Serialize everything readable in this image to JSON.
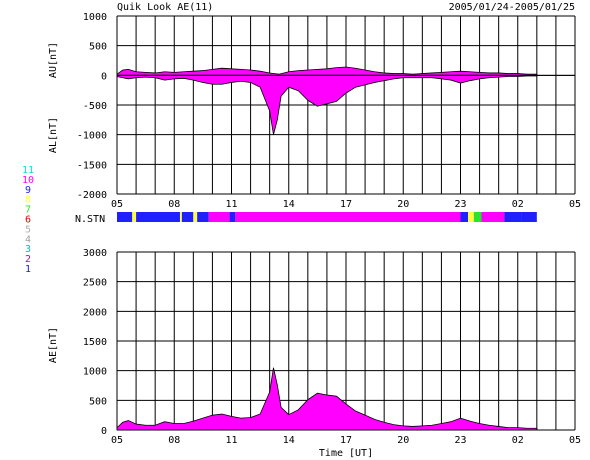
{
  "header": {
    "title": "Quik Look AE(11)",
    "date_range": "2005/01/24-2005/01/25"
  },
  "colors": {
    "grid": "#000000",
    "station_sequence_note": "colors map to station counts 1-11",
    "legend": [
      "#4040ff",
      "#8000ff",
      "#00b0ff",
      "#c0c0c0",
      "#ff0000",
      "#00ff00",
      "#ffff00",
      "#0000ff",
      "#ff00ff",
      "#00ffff",
      "#ff00ff"
    ]
  },
  "legend": {
    "items": [
      {
        "label": "11",
        "color": "#00e0e0"
      },
      {
        "label": "10",
        "color": "#ff00ff"
      },
      {
        "label": "9",
        "color": "#2020ff"
      },
      {
        "label": "8",
        "color": "#ffff40"
      },
      {
        "label": "7",
        "color": "#30e030"
      },
      {
        "label": "6",
        "color": "#e00000"
      },
      {
        "label": "5",
        "color": "#b0b0b0"
      },
      {
        "label": "4",
        "color": "#a0a0a0"
      },
      {
        "label": "3",
        "color": "#20b0b0"
      },
      {
        "label": "2",
        "color": "#a020a0"
      },
      {
        "label": "1",
        "color": "#2020c0"
      }
    ]
  },
  "nstn_label": "N.STN",
  "chart_data": [
    {
      "type": "area",
      "name": "AU/AL",
      "ylabel_top": "AU[nT]",
      "ylabel_bottom": "AL[nT]",
      "ylim": [
        -2000,
        1000
      ],
      "yticks": [
        1000,
        500,
        0,
        -500,
        -1000,
        -1500,
        -2000
      ],
      "xlim": [
        5,
        29
      ],
      "xticks": [
        "05",
        "08",
        "11",
        "14",
        "17",
        "20",
        "23",
        "02",
        "05"
      ],
      "au": {
        "x": [
          5.0,
          5.3,
          5.6,
          6.0,
          6.5,
          7.0,
          7.5,
          8.0,
          8.5,
          9.0,
          9.5,
          10.0,
          10.5,
          11.0,
          11.5,
          12.0,
          12.5,
          13.0,
          13.5,
          14.0,
          14.5,
          15.0,
          15.5,
          16.0,
          16.5,
          17.0,
          17.5,
          18.0,
          18.5,
          19.0,
          19.5,
          20.0,
          20.5,
          21.0,
          21.5,
          22.0,
          22.5,
          23.0,
          23.5,
          24.0,
          24.5,
          25.0,
          25.5,
          26.0,
          26.5,
          27.0
        ],
        "y": [
          20,
          90,
          100,
          60,
          50,
          40,
          60,
          50,
          60,
          70,
          80,
          100,
          120,
          110,
          100,
          90,
          70,
          40,
          20,
          60,
          80,
          90,
          100,
          110,
          130,
          140,
          120,
          90,
          60,
          40,
          30,
          30,
          20,
          30,
          40,
          50,
          60,
          70,
          60,
          50,
          40,
          40,
          30,
          30,
          20,
          20
        ]
      },
      "al": {
        "x": [
          5.0,
          5.3,
          5.6,
          6.0,
          6.5,
          7.0,
          7.5,
          8.0,
          8.5,
          9.0,
          9.5,
          10.0,
          10.5,
          11.0,
          11.5,
          12.0,
          12.5,
          13.0,
          13.2,
          13.4,
          13.6,
          14.0,
          14.5,
          15.0,
          15.5,
          16.0,
          16.5,
          17.0,
          17.5,
          18.0,
          18.5,
          19.0,
          19.5,
          20.0,
          20.5,
          21.0,
          21.5,
          22.0,
          22.5,
          23.0,
          23.5,
          24.0,
          24.5,
          25.0,
          25.5,
          26.0,
          26.5,
          27.0
        ],
        "y": [
          -20,
          -40,
          -60,
          -40,
          -30,
          -40,
          -80,
          -60,
          -50,
          -80,
          -120,
          -150,
          -150,
          -120,
          -100,
          -120,
          -200,
          -600,
          -1000,
          -750,
          -350,
          -200,
          -260,
          -420,
          -520,
          -480,
          -440,
          -300,
          -200,
          -160,
          -120,
          -90,
          -60,
          -40,
          -40,
          -40,
          -40,
          -60,
          -80,
          -130,
          -90,
          -60,
          -40,
          -30,
          -20,
          -20,
          -10,
          -10
        ]
      }
    },
    {
      "type": "area",
      "name": "AE",
      "ylabel": "AE[nT]",
      "xlabel": "Time [UT]",
      "ylim": [
        0,
        3000
      ],
      "yticks": [
        3000,
        2500,
        2000,
        1500,
        1000,
        500,
        0
      ],
      "xlim": [
        5,
        29
      ],
      "xticks": [
        "05",
        "08",
        "11",
        "14",
        "17",
        "20",
        "23",
        "02",
        "05"
      ],
      "ae": {
        "x": [
          5.0,
          5.3,
          5.6,
          6.0,
          6.5,
          7.0,
          7.5,
          8.0,
          8.5,
          9.0,
          9.5,
          10.0,
          10.5,
          11.0,
          11.5,
          12.0,
          12.5,
          13.0,
          13.2,
          13.4,
          13.6,
          14.0,
          14.5,
          15.0,
          15.5,
          16.0,
          16.5,
          17.0,
          17.5,
          18.0,
          18.5,
          19.0,
          19.5,
          20.0,
          20.5,
          21.0,
          21.5,
          22.0,
          22.5,
          23.0,
          23.5,
          24.0,
          24.5,
          25.0,
          25.5,
          26.0,
          26.5,
          27.0
        ],
        "y": [
          40,
          130,
          160,
          100,
          80,
          80,
          140,
          110,
          110,
          150,
          200,
          250,
          270,
          230,
          200,
          210,
          270,
          640,
          1050,
          760,
          380,
          260,
          340,
          510,
          620,
          590,
          570,
          440,
          320,
          250,
          180,
          130,
          90,
          70,
          60,
          70,
          80,
          110,
          140,
          200,
          150,
          110,
          80,
          60,
          40,
          40,
          30,
          30
        ]
      }
    }
  ],
  "nstn": {
    "segments": [
      {
        "from": 5.0,
        "to": 5.8,
        "color": "#2020ff"
      },
      {
        "from": 5.8,
        "to": 6.0,
        "color": "#ffff40"
      },
      {
        "from": 6.0,
        "to": 8.3,
        "color": "#2020ff"
      },
      {
        "from": 8.3,
        "to": 8.4,
        "color": "#ffff40"
      },
      {
        "from": 8.4,
        "to": 9.0,
        "color": "#2020ff"
      },
      {
        "from": 9.0,
        "to": 9.2,
        "color": "#ffff40"
      },
      {
        "from": 9.2,
        "to": 9.8,
        "color": "#2020ff"
      },
      {
        "from": 9.8,
        "to": 10.9,
        "color": "#ff00ff"
      },
      {
        "from": 10.9,
        "to": 11.2,
        "color": "#2020ff"
      },
      {
        "from": 11.2,
        "to": 23.0,
        "color": "#ff00ff"
      },
      {
        "from": 23.0,
        "to": 23.4,
        "color": "#2020ff"
      },
      {
        "from": 23.4,
        "to": 23.7,
        "color": "#ffff40"
      },
      {
        "from": 23.7,
        "to": 24.1,
        "color": "#30e030"
      },
      {
        "from": 24.1,
        "to": 25.3,
        "color": "#ff00ff"
      },
      {
        "from": 25.3,
        "to": 26.2,
        "color": "#2020ff"
      },
      {
        "from": 26.2,
        "to": 27.0,
        "color": "#2020ff"
      }
    ]
  }
}
